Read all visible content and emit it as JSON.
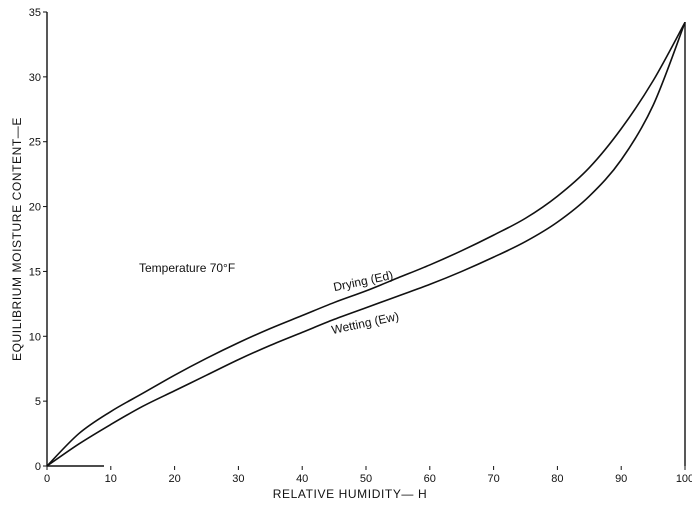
{
  "chart_data": {
    "type": "line",
    "title": "",
    "xlabel": "RELATIVE HUMIDITY— H",
    "ylabel": "EQUILIBRIUM MOISTURE CONTENT—E",
    "xlim": [
      0,
      100
    ],
    "ylim": [
      0,
      35
    ],
    "x_ticks": [
      0,
      10,
      20,
      30,
      40,
      50,
      60,
      70,
      80,
      90,
      100
    ],
    "y_ticks": [
      0,
      5,
      10,
      15,
      20,
      25,
      30,
      35
    ],
    "grid": false,
    "annotation": "Temperature 70°F",
    "series": [
      {
        "name": "Drying (Ed)",
        "x": [
          0,
          5,
          10,
          15,
          20,
          25,
          30,
          35,
          40,
          45,
          50,
          55,
          60,
          65,
          70,
          75,
          80,
          85,
          90,
          95,
          100
        ],
        "y": [
          0,
          2.5,
          4.2,
          5.6,
          7.0,
          8.3,
          9.5,
          10.6,
          11.6,
          12.6,
          13.5,
          14.5,
          15.5,
          16.6,
          17.8,
          19.1,
          20.8,
          23.0,
          26.0,
          29.7,
          34.2
        ]
      },
      {
        "name": "Wetting (Ew)",
        "x": [
          0,
          5,
          10,
          15,
          20,
          25,
          30,
          35,
          40,
          45,
          50,
          55,
          60,
          65,
          70,
          75,
          80,
          85,
          90,
          95,
          100
        ],
        "y": [
          0,
          1.7,
          3.2,
          4.6,
          5.8,
          7.0,
          8.2,
          9.3,
          10.3,
          11.3,
          12.2,
          13.1,
          14.0,
          15.0,
          16.1,
          17.3,
          18.8,
          20.8,
          23.6,
          27.8,
          34.2
        ]
      }
    ]
  }
}
